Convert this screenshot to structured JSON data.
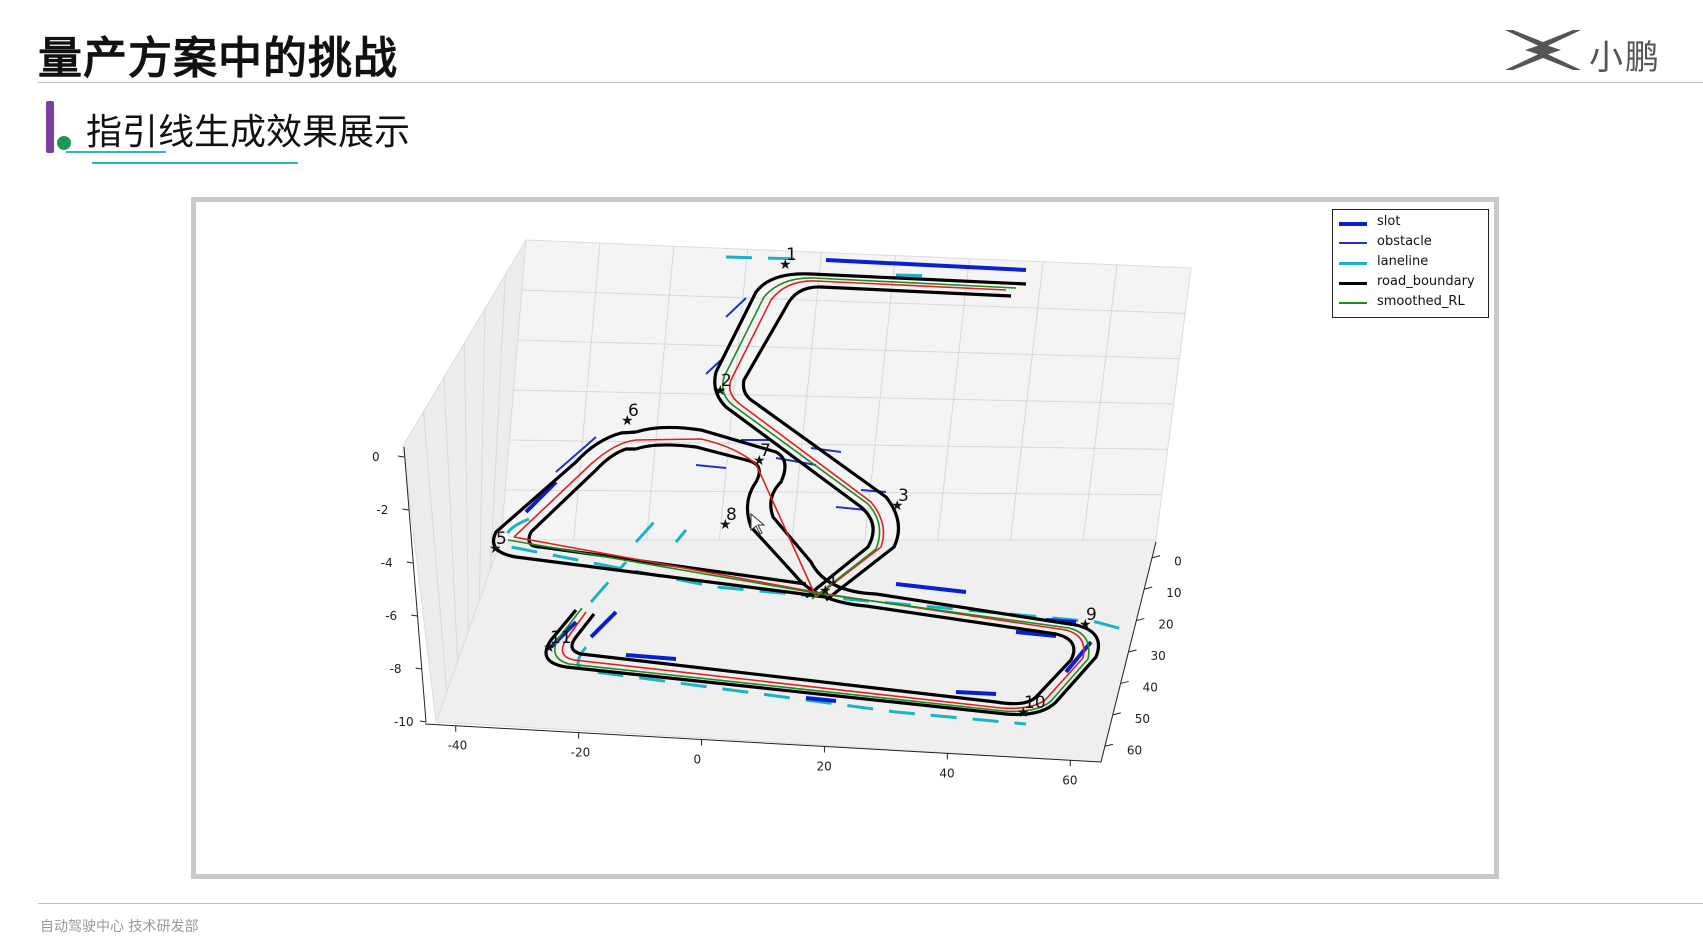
{
  "slide": {
    "title": "量产方案中的挑战",
    "section_title": "指引线生成效果展示",
    "footer": "自动驾驶中心 技术研发部"
  },
  "logo": {
    "text": "小鹏",
    "mark": "xpeng-x-logo"
  },
  "colors": {
    "slot": "#0a1fd0",
    "obstacle": "#2233cc",
    "laneline": "#1ab3c4",
    "road_boundary": "#000000",
    "smoothed_RL": "#1e8a1e",
    "reference": "#e02020",
    "accent_purple": "#7a3fa0",
    "accent_green": "#1a9a55"
  },
  "chart_data": {
    "type": "line",
    "projection": "3d",
    "legend_position": "top-right",
    "legend": [
      "slot",
      "obstacle",
      "laneline",
      "road_boundary",
      "smoothed_RL"
    ],
    "axes": {
      "x_ticks": [
        "-40",
        "-20",
        "0",
        "20",
        "40",
        "60"
      ],
      "y_ticks": [
        "0",
        "10",
        "20",
        "30",
        "40",
        "50",
        "60"
      ],
      "z_ticks": [
        "0",
        "-2",
        "-4",
        "-6",
        "-8",
        "-10"
      ],
      "xlim": [
        -45,
        65
      ],
      "ylim": [
        -5,
        65
      ],
      "zlim": [
        -10,
        0
      ]
    },
    "waypoints": [
      {
        "label": "1"
      },
      {
        "label": "2"
      },
      {
        "label": "3"
      },
      {
        "label": "4"
      },
      {
        "label": "5"
      },
      {
        "label": "6"
      },
      {
        "label": "7"
      },
      {
        "label": "8"
      },
      {
        "label": "9"
      },
      {
        "label": "10"
      },
      {
        "label": "11"
      }
    ],
    "grid": true
  }
}
